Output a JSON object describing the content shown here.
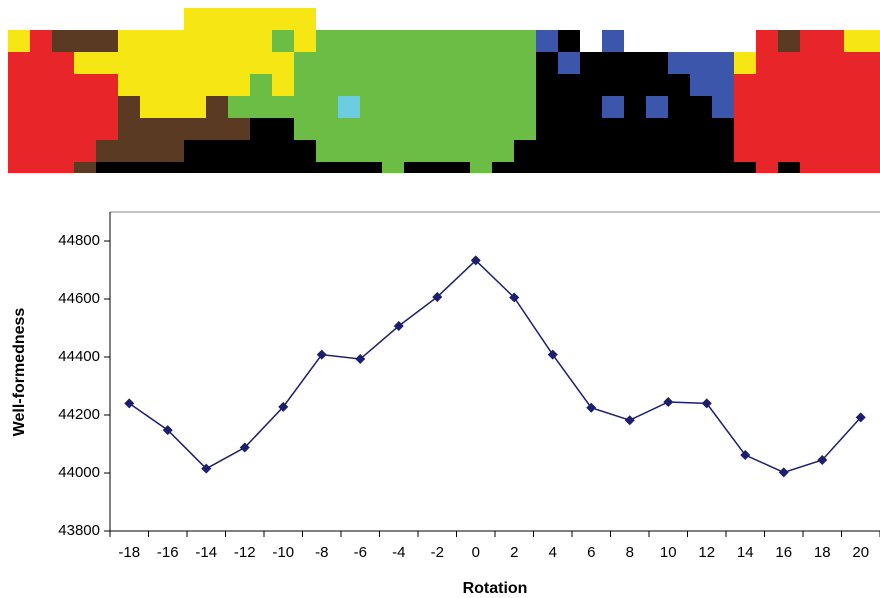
{
  "chart_data": {
    "type": "line",
    "x_label": "Rotation",
    "y_label": "Well-formedness",
    "categories": [
      "-18",
      "-16",
      "-14",
      "-12",
      "-10",
      "-8",
      "-6",
      "-4",
      "-2",
      "0",
      "2",
      "4",
      "6",
      "8",
      "10",
      "12",
      "14",
      "16",
      "18",
      "20"
    ],
    "series": [
      {
        "name": "Well-formedness",
        "color": "#1c1f6b",
        "values": [
          44240,
          44148,
          44015,
          44088,
          44228,
          44408,
          44393,
          44507,
          44607,
          44733,
          44605,
          44408,
          44225,
          44182,
          44245,
          44240,
          44062,
          44002,
          44045,
          44192
        ]
      }
    ],
    "ylim": [
      43800,
      44900
    ],
    "yticks": [
      43800,
      44000,
      44200,
      44400,
      44600,
      44800
    ],
    "grid": false
  }
}
